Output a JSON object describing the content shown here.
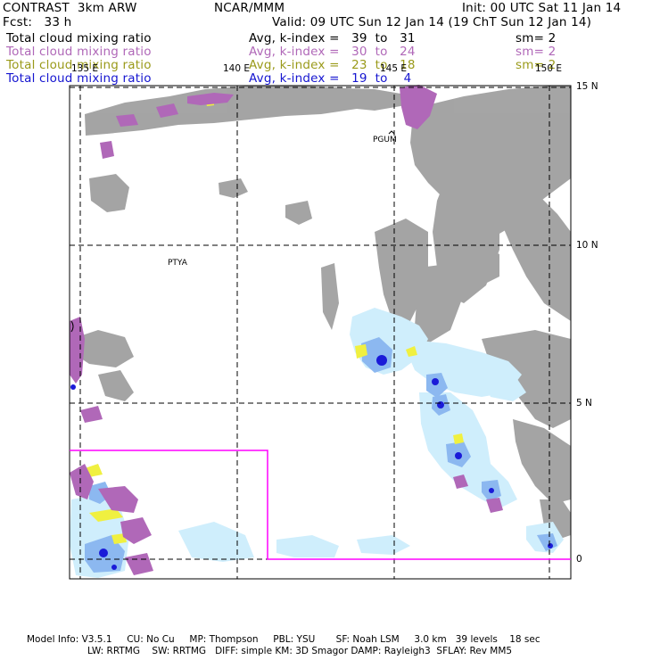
{
  "header": {
    "product": "CONTRAST  3km ARW",
    "center": "NCAR/MMM",
    "init": "Init: 00 UTC Sat 11 Jan 14",
    "fcst": "Fcst:   33 h",
    "valid": "Valid: 09 UTC Sun 12 Jan 14 (19 ChT Sun 12 Jan 14)"
  },
  "fields": [
    {
      "name": "Total cloud mixing ratio",
      "range": "Avg, k-index =   39  to   31",
      "sm": "sm= 2",
      "color": "#000000"
    },
    {
      "name": "Total cloud mixing ratio",
      "range": "Avg, k-index =   30  to   24",
      "sm": "sm= 2",
      "color": "#b068b8"
    },
    {
      "name": "Total cloud mixing ratio",
      "range": "Avg, k-index =   23  to   18",
      "sm": "sm= 2",
      "color": "#9a9a1a"
    },
    {
      "name": "Total cloud mixing ratio",
      "range": "Avg, k-index =   19  to    4",
      "sm": "",
      "color": "#1515d0"
    }
  ],
  "map": {
    "lon_labels": [
      "135 E",
      "140 E",
      "145 E",
      "150 E"
    ],
    "lat_labels": [
      "15 N",
      "10 N",
      "5 N",
      "0"
    ],
    "stations": [
      "PGUM",
      "PTYA"
    ],
    "colors": {
      "gray": "#a0a0a0",
      "purple": "#b068b8",
      "yellow": "#f0f040",
      "lightblue": "#cfeefc",
      "midblue": "#8cb8f0",
      "darkblue": "#1a1ad8",
      "box": "#ff00ff"
    }
  },
  "footer": {
    "line1": "Model Info: V3.5.1     CU: No Cu     MP: Thompson     PBL: YSU       SF: Noah LSM     3.0 km   39 levels    18 sec",
    "line2": "LW: RRTMG    SW: RRTMG   DIFF: simple KM: 3D Smagor DAMP: Rayleigh3  SFLAY: Rev MM5"
  }
}
